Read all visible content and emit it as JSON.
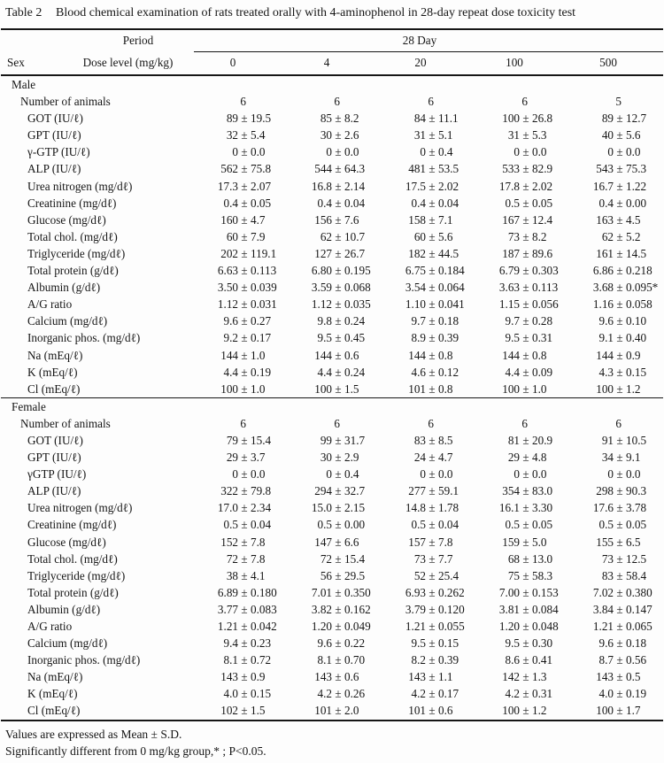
{
  "title": "Table 2",
  "caption": "Blood chemical examination of rats treated orally with 4-aminophenol in 28-day repeat dose toxicity test",
  "header": {
    "period_label": "Period",
    "period_value": "28 Day",
    "sex_label": "Sex",
    "dose_label": "Dose level (mg/kg)",
    "doses": [
      "0",
      "4",
      "20",
      "100",
      "500"
    ]
  },
  "sections": [
    {
      "sex": "Male",
      "number_label": "Number of animals",
      "counts": [
        "6",
        "6",
        "6",
        "6",
        "5"
      ],
      "rows": [
        {
          "label": "GOT (IU/ℓ)",
          "values": [
            [
              "89",
              "19.5"
            ],
            [
              "85",
              "8.2"
            ],
            [
              "84",
              "11.1"
            ],
            [
              "100",
              "26.8"
            ],
            [
              "89",
              "12.7"
            ]
          ]
        },
        {
          "label": "GPT (IU/ℓ)",
          "values": [
            [
              "32",
              "5.4"
            ],
            [
              "30",
              "2.6"
            ],
            [
              "31",
              "5.1"
            ],
            [
              "31",
              "5.3"
            ],
            [
              "40",
              "5.6"
            ]
          ]
        },
        {
          "label": "γ-GTP (IU/ℓ)",
          "values": [
            [
              "0",
              "0.0"
            ],
            [
              "0",
              "0.0"
            ],
            [
              "0",
              "0.4"
            ],
            [
              "0",
              "0.0"
            ],
            [
              "0",
              "0.0"
            ]
          ]
        },
        {
          "label": "ALP (IU/ℓ)",
          "values": [
            [
              "562",
              "75.8"
            ],
            [
              "544",
              "64.3"
            ],
            [
              "481",
              "53.5"
            ],
            [
              "533",
              "82.9"
            ],
            [
              "543",
              "75.3"
            ]
          ]
        },
        {
          "label": "Urea nitrogen (mg/dℓ)",
          "values": [
            [
              "17.3",
              "2.07"
            ],
            [
              "16.8",
              "2.14"
            ],
            [
              "17.5",
              "2.02"
            ],
            [
              "17.8",
              "2.02"
            ],
            [
              "16.7",
              "1.22"
            ]
          ]
        },
        {
          "label": "Creatinine (mg/dℓ)",
          "values": [
            [
              "0.4",
              "0.05"
            ],
            [
              "0.4",
              "0.04"
            ],
            [
              "0.4",
              "0.04"
            ],
            [
              "0.5",
              "0.05"
            ],
            [
              "0.4",
              "0.00"
            ]
          ]
        },
        {
          "label": "Glucose (mg/dℓ)",
          "values": [
            [
              "160",
              "4.7"
            ],
            [
              "156",
              "7.6"
            ],
            [
              "158",
              "7.1"
            ],
            [
              "167",
              "12.4"
            ],
            [
              "163",
              "4.5"
            ]
          ]
        },
        {
          "label": "Total chol. (mg/dℓ)",
          "values": [
            [
              "60",
              "7.9"
            ],
            [
              "62",
              "10.7"
            ],
            [
              "60",
              "5.6"
            ],
            [
              "73",
              "8.2"
            ],
            [
              "62",
              "5.2"
            ]
          ]
        },
        {
          "label": "Triglyceride (mg/dℓ)",
          "values": [
            [
              "202",
              "119.1"
            ],
            [
              "127",
              "26.7"
            ],
            [
              "182",
              "44.5"
            ],
            [
              "187",
              "89.6"
            ],
            [
              "161",
              "14.5"
            ]
          ]
        },
        {
          "label": "Total protein (g/dℓ)",
          "values": [
            [
              "6.63",
              "0.113"
            ],
            [
              "6.80",
              "0.195"
            ],
            [
              "6.75",
              "0.184"
            ],
            [
              "6.79",
              "0.303"
            ],
            [
              "6.86",
              "0.218"
            ]
          ]
        },
        {
          "label": "Albumin (g/dℓ)",
          "values": [
            [
              "3.50",
              "0.039"
            ],
            [
              "3.59",
              "0.068"
            ],
            [
              "3.54",
              "0.064"
            ],
            [
              "3.63",
              "0.113"
            ],
            [
              "3.68",
              "0.095*"
            ]
          ]
        },
        {
          "label": "A/G ratio",
          "values": [
            [
              "1.12",
              "0.031"
            ],
            [
              "1.12",
              "0.035"
            ],
            [
              "1.10",
              "0.041"
            ],
            [
              "1.15",
              "0.056"
            ],
            [
              "1.16",
              "0.058"
            ]
          ]
        },
        {
          "label": "Calcium (mg/dℓ)",
          "values": [
            [
              "9.6",
              "0.27"
            ],
            [
              "9.8",
              "0.24"
            ],
            [
              "9.7",
              "0.18"
            ],
            [
              "9.7",
              "0.28"
            ],
            [
              "9.6",
              "0.10"
            ]
          ]
        },
        {
          "label": "Inorganic phos. (mg/dℓ)",
          "values": [
            [
              "9.2",
              "0.17"
            ],
            [
              "9.5",
              "0.45"
            ],
            [
              "8.9",
              "0.39"
            ],
            [
              "9.5",
              "0.31"
            ],
            [
              "9.1",
              "0.40"
            ]
          ]
        },
        {
          "label": "Na (mEq/ℓ)",
          "values": [
            [
              "144",
              "1.0"
            ],
            [
              "144",
              "0.6"
            ],
            [
              "144",
              "0.8"
            ],
            [
              "144",
              "0.8"
            ],
            [
              "144",
              "0.9"
            ]
          ]
        },
        {
          "label": "K (mEq/ℓ)",
          "values": [
            [
              "4.4",
              "0.19"
            ],
            [
              "4.4",
              "0.24"
            ],
            [
              "4.6",
              "0.12"
            ],
            [
              "4.4",
              "0.09"
            ],
            [
              "4.3",
              "0.15"
            ]
          ]
        },
        {
          "label": "Cl (mEq/ℓ)",
          "values": [
            [
              "100",
              "1.0"
            ],
            [
              "100",
              "1.5"
            ],
            [
              "101",
              "0.8"
            ],
            [
              "100",
              "1.0"
            ],
            [
              "100",
              "1.2"
            ]
          ]
        }
      ]
    },
    {
      "sex": "Female",
      "number_label": "Number of animals",
      "counts": [
        "6",
        "6",
        "6",
        "6",
        "6"
      ],
      "rows": [
        {
          "label": "GOT (IU/ℓ)",
          "values": [
            [
              "79",
              "15.4"
            ],
            [
              "99",
              "31.7"
            ],
            [
              "83",
              "8.5"
            ],
            [
              "81",
              "20.9"
            ],
            [
              "91",
              "10.5"
            ]
          ]
        },
        {
          "label": "GPT (IU/ℓ)",
          "values": [
            [
              "29",
              "3.7"
            ],
            [
              "30",
              "2.9"
            ],
            [
              "24",
              "4.7"
            ],
            [
              "29",
              "4.8"
            ],
            [
              "34",
              "9.1"
            ]
          ]
        },
        {
          "label": "γGTP (IU/ℓ)",
          "values": [
            [
              "0",
              "0.0"
            ],
            [
              "0",
              "0.4"
            ],
            [
              "0",
              "0.0"
            ],
            [
              "0",
              "0.0"
            ],
            [
              "0",
              "0.0"
            ]
          ]
        },
        {
          "label": "ALP (IU/ℓ)",
          "values": [
            [
              "322",
              "79.8"
            ],
            [
              "294",
              "32.7"
            ],
            [
              "277",
              "59.1"
            ],
            [
              "354",
              "83.0"
            ],
            [
              "298",
              "90.3"
            ]
          ]
        },
        {
          "label": "Urea nitrogen (mg/dℓ)",
          "values": [
            [
              "17.0",
              "2.34"
            ],
            [
              "15.0",
              "2.15"
            ],
            [
              "14.8",
              "1.78"
            ],
            [
              "16.1",
              "3.30"
            ],
            [
              "17.6",
              "3.78"
            ]
          ]
        },
        {
          "label": "Creatinine (mg/dℓ)",
          "values": [
            [
              "0.5",
              "0.04"
            ],
            [
              "0.5",
              "0.00"
            ],
            [
              "0.5",
              "0.04"
            ],
            [
              "0.5",
              "0.05"
            ],
            [
              "0.5",
              "0.05"
            ]
          ]
        },
        {
          "label": "Glucose (mg/dℓ)",
          "values": [
            [
              "152",
              "7.8"
            ],
            [
              "147",
              "6.6"
            ],
            [
              "157",
              "7.8"
            ],
            [
              "159",
              "5.0"
            ],
            [
              "155",
              "6.5"
            ]
          ]
        },
        {
          "label": "Total chol. (mg/dℓ)",
          "values": [
            [
              "72",
              "7.8"
            ],
            [
              "72",
              "15.4"
            ],
            [
              "73",
              "7.7"
            ],
            [
              "68",
              "13.0"
            ],
            [
              "73",
              "12.5"
            ]
          ]
        },
        {
          "label": "Triglyceride (mg/dℓ)",
          "values": [
            [
              "38",
              "4.1"
            ],
            [
              "56",
              "29.5"
            ],
            [
              "52",
              "25.4"
            ],
            [
              "75",
              "58.3"
            ],
            [
              "83",
              "58.4"
            ]
          ]
        },
        {
          "label": "Total protein (g/dℓ)",
          "values": [
            [
              "6.89",
              "0.180"
            ],
            [
              "7.01",
              "0.350"
            ],
            [
              "6.93",
              "0.262"
            ],
            [
              "7.00",
              "0.153"
            ],
            [
              "7.02",
              "0.380"
            ]
          ]
        },
        {
          "label": "Albumin (g/dℓ)",
          "values": [
            [
              "3.77",
              "0.083"
            ],
            [
              "3.82",
              "0.162"
            ],
            [
              "3.79",
              "0.120"
            ],
            [
              "3.81",
              "0.084"
            ],
            [
              "3.84",
              "0.147"
            ]
          ]
        },
        {
          "label": "A/G ratio",
          "values": [
            [
              "1.21",
              "0.042"
            ],
            [
              "1.20",
              "0.049"
            ],
            [
              "1.21",
              "0.055"
            ],
            [
              "1.20",
              "0.048"
            ],
            [
              "1.21",
              "0.065"
            ]
          ]
        },
        {
          "label": "Calcium (mg/dℓ)",
          "values": [
            [
              "9.4",
              "0.23"
            ],
            [
              "9.6",
              "0.22"
            ],
            [
              "9.5",
              "0.15"
            ],
            [
              "9.5",
              "0.30"
            ],
            [
              "9.6",
              "0.18"
            ]
          ]
        },
        {
          "label": "Inorganic phos. (mg/dℓ)",
          "values": [
            [
              "8.1",
              "0.72"
            ],
            [
              "8.1",
              "0.70"
            ],
            [
              "8.2",
              "0.39"
            ],
            [
              "8.6",
              "0.41"
            ],
            [
              "8.7",
              "0.56"
            ]
          ]
        },
        {
          "label": "Na (mEq/ℓ)",
          "values": [
            [
              "143",
              "0.9"
            ],
            [
              "143",
              "0.6"
            ],
            [
              "143",
              "1.1"
            ],
            [
              "142",
              "1.3"
            ],
            [
              "143",
              "0.5"
            ]
          ]
        },
        {
          "label": "K (mEq/ℓ)",
          "values": [
            [
              "4.0",
              "0.15"
            ],
            [
              "4.2",
              "0.26"
            ],
            [
              "4.2",
              "0.17"
            ],
            [
              "4.2",
              "0.31"
            ],
            [
              "4.0",
              "0.19"
            ]
          ]
        },
        {
          "label": "Cl (mEq/ℓ)",
          "values": [
            [
              "102",
              "1.5"
            ],
            [
              "101",
              "2.0"
            ],
            [
              "101",
              "0.6"
            ],
            [
              "100",
              "1.2"
            ],
            [
              "100",
              "1.7"
            ]
          ]
        }
      ]
    }
  ],
  "footnotes": [
    "Values are expressed as Mean ± S.D.",
    "Significantly different from 0 mg/kg group,* ; P<0.05."
  ],
  "plus_minus": "±"
}
